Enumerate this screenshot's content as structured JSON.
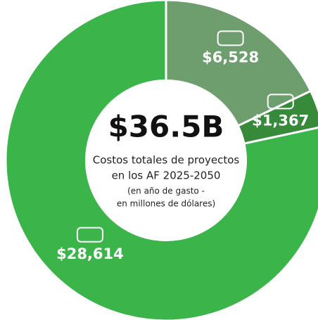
{
  "chart_data": {
    "type": "donut",
    "values": [
      6528,
      1367,
      28614
    ],
    "value_labels": [
      "$6,528",
      "$1,367",
      "$28,614"
    ],
    "colors": [
      "#6e9d6e",
      "#368a3a",
      "#3bb54a"
    ],
    "center_title": "$36.5B",
    "center_lines": [
      "Costos totales de proyectos",
      "en los AF 2025-2050"
    ],
    "center_notes": [
      "(en año de gasto -",
      "en millones de dólares)"
    ]
  }
}
